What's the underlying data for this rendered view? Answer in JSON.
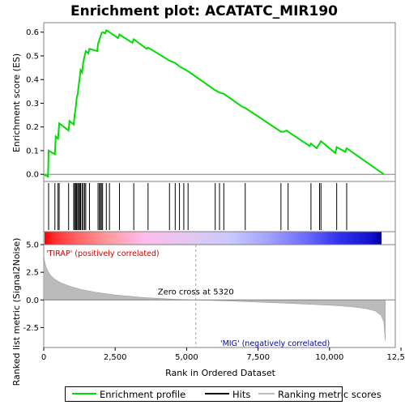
{
  "chart_data": {
    "type": "line",
    "title": "Enrichment plot: ACATATC_MIR190",
    "top_panel": {
      "ylabel": "Enrichment score (ES)",
      "ylim": [
        -0.03,
        0.64
      ],
      "yticks": [
        0.0,
        0.1,
        0.2,
        0.3,
        0.4,
        0.5,
        0.6
      ],
      "ytick_labels": [
        "0.0",
        "0.1",
        "0.2",
        "0.3",
        "0.4",
        "0.5",
        "0.6"
      ],
      "series": [
        {
          "name": "Enrichment profile",
          "color": "#00dd00",
          "x": [
            0,
            150,
            170,
            390,
            420,
            500,
            540,
            870,
            900,
            1050,
            1080,
            1120,
            1150,
            1190,
            1220,
            1260,
            1290,
            1340,
            1380,
            1430,
            1470,
            1560,
            1600,
            1870,
            1900,
            1950,
            1980,
            2020,
            2060,
            2150,
            2190,
            2300,
            2600,
            2650,
            3100,
            3150,
            3600,
            3650,
            4400,
            4600,
            4750,
            4900,
            5050,
            6000,
            6150,
            6300,
            6950,
            7050,
            8300,
            8400,
            8500,
            8550,
            9300,
            9350,
            9550,
            9650,
            9700,
            10200,
            10250,
            10550,
            10600,
            11900
          ],
          "y": [
            0.0,
            -0.01,
            0.1,
            0.085,
            0.16,
            0.15,
            0.215,
            0.185,
            0.225,
            0.21,
            0.25,
            0.28,
            0.32,
            0.34,
            0.37,
            0.41,
            0.44,
            0.43,
            0.47,
            0.5,
            0.52,
            0.51,
            0.53,
            0.52,
            0.55,
            0.57,
            0.58,
            0.595,
            0.6,
            0.595,
            0.608,
            0.6,
            0.575,
            0.59,
            0.555,
            0.57,
            0.53,
            0.535,
            0.48,
            0.47,
            0.455,
            0.445,
            0.435,
            0.355,
            0.345,
            0.34,
            0.285,
            0.28,
            0.18,
            0.18,
            0.185,
            0.18,
            0.12,
            0.13,
            0.11,
            0.13,
            0.14,
            0.09,
            0.115,
            0.095,
            0.11,
            0.0
          ]
        }
      ]
    },
    "hits": {
      "name": "Hits",
      "positions": [
        170,
        390,
        500,
        540,
        870,
        1050,
        1080,
        1120,
        1150,
        1190,
        1220,
        1260,
        1290,
        1340,
        1380,
        1430,
        1470,
        1600,
        1900,
        1950,
        1980,
        2020,
        2060,
        2190,
        2300,
        2650,
        3150,
        3650,
        4400,
        4600,
        4750,
        4900,
        5050,
        6000,
        6150,
        6300,
        7050,
        8300,
        8550,
        9350,
        9650,
        9700,
        10250,
        10600
      ]
    },
    "heatmap_bar": {
      "colors": [
        "#ff0000",
        "#ff3333",
        "#ff6666",
        "#ff9999",
        "#ffbbee",
        "#e0c8f0",
        "#c8c8ff",
        "#a0a0ff",
        "#6a6aff",
        "#3333ee",
        "#1010cc",
        "#000099"
      ],
      "stops": [
        0,
        400,
        1200,
        2200,
        3500,
        5320,
        6600,
        8000,
        9300,
        10400,
        11600,
        11950
      ]
    },
    "bottom_panel": {
      "ylabel": "Ranked list metric (Signal2Noise)",
      "xlabel": "Rank in Ordered Dataset",
      "ylim": [
        -4.3,
        5.0
      ],
      "yticks": [
        5.0,
        2.5,
        0.0,
        -2.5
      ],
      "ytick_labels": [
        "5.0",
        "2.5",
        "0.0",
        "-2.5"
      ],
      "xlim": [
        0,
        12300
      ],
      "xticks": [
        0,
        2500,
        5000,
        7500,
        10000,
        12500
      ],
      "xtick_labels": [
        "0",
        "2,500",
        "5,000",
        "7,500",
        "10,000",
        "12,500"
      ],
      "metric_curve": {
        "name": "Ranking metric scores",
        "x": [
          0,
          30,
          80,
          150,
          250,
          400,
          600,
          900,
          1300,
          1800,
          2500,
          3500,
          4500,
          5320,
          6500,
          7500,
          8500,
          9500,
          10300,
          10900,
          11300,
          11600,
          11800,
          11900,
          11950
        ],
        "y": [
          4.2,
          3.5,
          3.0,
          2.6,
          2.2,
          1.85,
          1.55,
          1.25,
          0.95,
          0.7,
          0.45,
          0.22,
          0.07,
          0.0,
          -0.1,
          -0.2,
          -0.3,
          -0.42,
          -0.52,
          -0.65,
          -0.8,
          -1.0,
          -1.4,
          -2.0,
          -3.7
        ]
      },
      "zero_cross_label": "Zero cross at 5320",
      "zero_cross": 5320,
      "pos_label": "'TIRAP' (positively correlated)",
      "neg_label": "'MIG' (negatively correlated)"
    },
    "legend": [
      {
        "label": "Enrichment profile",
        "color": "#00dd00"
      },
      {
        "label": "Hits",
        "color": "#000000"
      },
      {
        "label": "Ranking metric scores",
        "color": "#bbbbbb"
      }
    ]
  }
}
